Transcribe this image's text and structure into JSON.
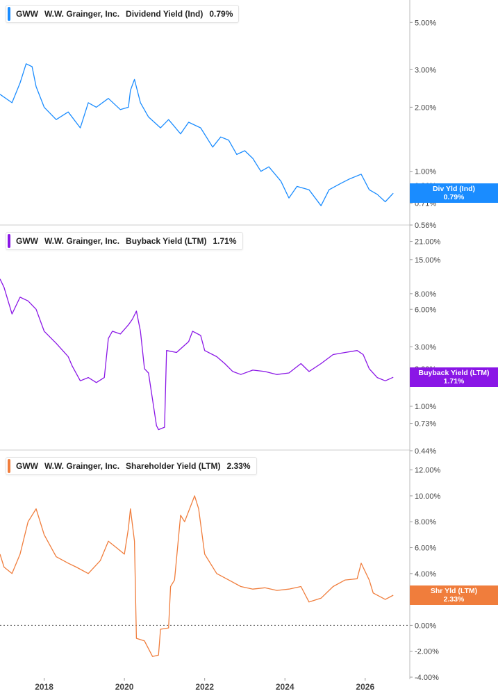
{
  "chart_data": [
    {
      "type": "line",
      "ticker": "GWW",
      "company": "W.W. Grainger, Inc.",
      "metric": "Dividend Yield (Ind)",
      "current": "0.79%",
      "color": "#1a8cff",
      "scale": "log",
      "yticks": [
        5.0,
        3.0,
        2.0,
        1.0,
        0.86,
        0.71,
        0.56
      ],
      "ytick_labels": [
        "5.00%",
        "3.00%",
        "2.00%",
        "1.00%",
        "0.86%",
        "0.71%",
        "0.56%"
      ],
      "ylim": [
        0.56,
        6.0
      ],
      "tag": {
        "label": "Div Yld (Ind)",
        "value": "0.79%",
        "y": 0.79
      },
      "x": [
        2016.9,
        2017.2,
        2017.4,
        2017.55,
        2017.7,
        2017.8,
        2018.0,
        2018.3,
        2018.6,
        2018.9,
        2019.1,
        2019.3,
        2019.6,
        2019.9,
        2020.1,
        2020.15,
        2020.25,
        2020.4,
        2020.6,
        2020.9,
        2021.1,
        2021.4,
        2021.6,
        2021.9,
        2022.2,
        2022.4,
        2022.6,
        2022.8,
        2023.0,
        2023.2,
        2023.4,
        2023.6,
        2023.9,
        2024.1,
        2024.3,
        2024.6,
        2024.9,
        2025.1,
        2025.4,
        2025.6,
        2025.9,
        2026.1,
        2026.3,
        2026.5,
        2026.7
      ],
      "y": [
        2.3,
        2.1,
        2.6,
        3.2,
        3.1,
        2.5,
        2.0,
        1.75,
        1.9,
        1.6,
        2.1,
        2.0,
        2.2,
        1.95,
        2.0,
        2.4,
        2.7,
        2.1,
        1.8,
        1.6,
        1.75,
        1.5,
        1.7,
        1.6,
        1.3,
        1.45,
        1.4,
        1.2,
        1.25,
        1.15,
        1.0,
        1.05,
        0.9,
        0.75,
        0.85,
        0.82,
        0.69,
        0.82,
        0.88,
        0.92,
        0.97,
        0.82,
        0.78,
        0.72,
        0.79
      ]
    },
    {
      "type": "line",
      "ticker": "GWW",
      "company": "W.W. Grainger, Inc.",
      "metric": "Buyback Yield (LTM)",
      "current": "1.71%",
      "color": "#8a16e6",
      "scale": "log",
      "yticks": [
        21.0,
        15.0,
        8.0,
        6.0,
        3.0,
        2.0,
        1.0,
        0.73,
        0.44
      ],
      "ytick_labels": [
        "21.00%",
        "15.00%",
        "8.00%",
        "6.00%",
        "3.00%",
        "2.00%",
        "1.00%",
        "0.73%",
        "0.44%"
      ],
      "ylim": [
        0.44,
        25.0
      ],
      "tag": {
        "label": "Buyback Yield (LTM)",
        "value": "1.71%",
        "y": 1.71
      },
      "x": [
        2016.9,
        2017.0,
        2017.2,
        2017.4,
        2017.6,
        2017.8,
        2018.0,
        2018.3,
        2018.6,
        2018.7,
        2018.9,
        2019.1,
        2019.3,
        2019.5,
        2019.6,
        2019.7,
        2019.9,
        2020.1,
        2020.2,
        2020.3,
        2020.4,
        2020.5,
        2020.6,
        2020.8,
        2020.85,
        2021.0,
        2021.05,
        2021.3,
        2021.6,
        2021.7,
        2021.9,
        2022.0,
        2022.3,
        2022.5,
        2022.7,
        2022.9,
        2023.2,
        2023.5,
        2023.8,
        2024.1,
        2024.4,
        2024.6,
        2024.9,
        2025.2,
        2025.5,
        2025.8,
        2025.95,
        2026.1,
        2026.3,
        2026.5,
        2026.7
      ],
      "y": [
        10.5,
        9.0,
        5.5,
        7.5,
        7.0,
        6.0,
        4.0,
        3.2,
        2.5,
        2.1,
        1.6,
        1.7,
        1.55,
        1.7,
        3.5,
        4.0,
        3.8,
        4.5,
        5.0,
        5.8,
        4.0,
        2.0,
        1.85,
        0.7,
        0.65,
        0.68,
        2.8,
        2.7,
        3.3,
        4.0,
        3.7,
        2.8,
        2.5,
        2.2,
        1.9,
        1.8,
        1.95,
        1.9,
        1.8,
        1.85,
        2.2,
        1.9,
        2.2,
        2.6,
        2.7,
        2.8,
        2.6,
        2.0,
        1.7,
        1.6,
        1.71
      ]
    },
    {
      "type": "line",
      "ticker": "GWW",
      "company": "W.W. Grainger, Inc.",
      "metric": "Shareholder Yield (LTM)",
      "current": "2.33%",
      "color": "#f07d3c",
      "scale": "linear",
      "yticks": [
        12.0,
        10.0,
        8.0,
        6.0,
        4.0,
        2.0,
        0.0,
        -2.0,
        -4.0
      ],
      "ytick_labels": [
        "12.00%",
        "10.00%",
        "8.00%",
        "6.00%",
        "4.00%",
        "2.00%",
        "0.00%",
        "-2.00%",
        "-4.00%"
      ],
      "ylim": [
        -4.0,
        13.0
      ],
      "zero_line": true,
      "tag": {
        "label": "Shr Yld (LTM)",
        "value": "2.33%",
        "y": 2.33
      },
      "x": [
        2016.9,
        2017.0,
        2017.2,
        2017.4,
        2017.6,
        2017.8,
        2018.0,
        2018.3,
        2018.6,
        2018.8,
        2019.1,
        2019.4,
        2019.6,
        2019.8,
        2020.0,
        2020.1,
        2020.15,
        2020.25,
        2020.3,
        2020.5,
        2020.7,
        2020.85,
        2020.9,
        2021.1,
        2021.15,
        2021.25,
        2021.4,
        2021.5,
        2021.75,
        2021.85,
        2022.0,
        2022.3,
        2022.6,
        2022.9,
        2023.2,
        2023.5,
        2023.8,
        2024.1,
        2024.4,
        2024.6,
        2024.9,
        2025.2,
        2025.5,
        2025.8,
        2025.9,
        2026.1,
        2026.2,
        2026.5,
        2026.7
      ],
      "y": [
        5.5,
        4.5,
        4.0,
        5.5,
        8.0,
        9.0,
        7.0,
        5.3,
        4.8,
        4.5,
        4.0,
        5.0,
        6.5,
        6.0,
        5.5,
        7.5,
        9.0,
        6.5,
        -1.0,
        -1.2,
        -2.4,
        -2.3,
        -0.3,
        -0.2,
        3.0,
        3.5,
        8.5,
        8.0,
        10.0,
        9.0,
        5.5,
        4.0,
        3.5,
        3.0,
        2.8,
        2.9,
        2.7,
        2.8,
        3.0,
        1.8,
        2.1,
        3.0,
        3.5,
        3.6,
        4.8,
        3.5,
        2.5,
        2.0,
        2.33
      ]
    }
  ],
  "x_axis": {
    "ticks": [
      2018,
      2020,
      2022,
      2024,
      2026
    ],
    "tick_labels": [
      "2018",
      "2020",
      "2022",
      "2024",
      "2026"
    ],
    "xlim": [
      2016.9,
      2026.8
    ]
  }
}
